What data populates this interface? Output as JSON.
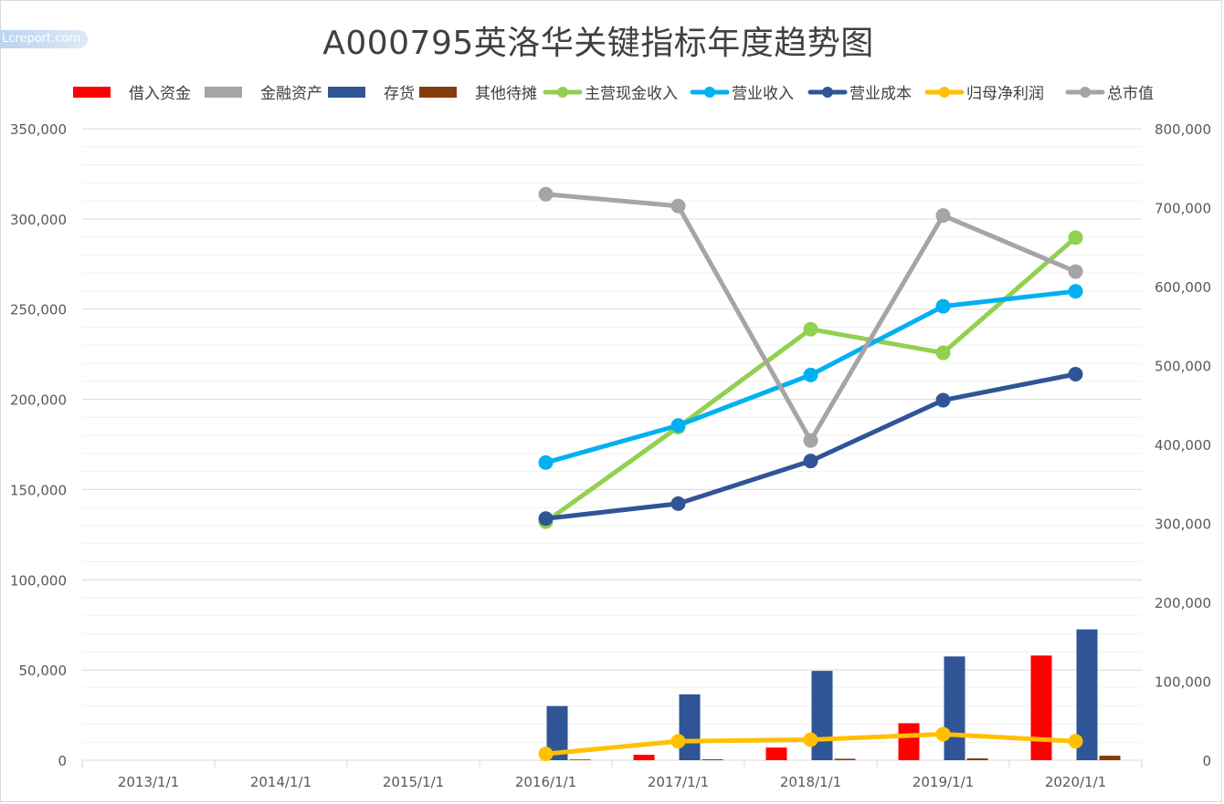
{
  "watermark": "Lcreport.com",
  "chart_data": {
    "type": "bar",
    "title": "A000795英洛华关键指标年度趋势图",
    "categories": [
      "2013/1/1",
      "2014/1/1",
      "2015/1/1",
      "2016/1/1",
      "2017/1/1",
      "2018/1/1",
      "2019/1/1",
      "2020/1/1"
    ],
    "left_axis": {
      "ylim": [
        0,
        350000
      ],
      "ticks": [
        "0",
        "50,000",
        "100,000",
        "150,000",
        "200,000",
        "250,000",
        "300,000",
        "350,000"
      ]
    },
    "right_axis": {
      "ylim": [
        0,
        800000
      ],
      "ticks": [
        "0",
        "100,000",
        "200,000",
        "300,000",
        "400,000",
        "500,000",
        "600,000",
        "700,000",
        "800,000"
      ]
    },
    "grid": true,
    "legend_position": "top",
    "bar_series": [
      {
        "name": "借入资金",
        "color": "#ff0000",
        "values": [
          null,
          null,
          null,
          0,
          3000,
          7000,
          20500,
          58000
        ]
      },
      {
        "name": "金融资产",
        "color": "#a5a5a5",
        "values": [
          null,
          null,
          null,
          0,
          0,
          0,
          0,
          0
        ]
      },
      {
        "name": "存货",
        "color": "#2f5597",
        "values": [
          null,
          null,
          null,
          30000,
          36500,
          49500,
          57500,
          72500
        ]
      },
      {
        "name": "其他待摊",
        "color": "#843c0c",
        "values": [
          null,
          null,
          null,
          400,
          500,
          800,
          1000,
          2500
        ]
      }
    ],
    "line_series": [
      {
        "name": "主营现金收入",
        "color": "#92d050",
        "values": [
          null,
          null,
          null,
          302000,
          422000,
          546000,
          516000,
          662000
        ]
      },
      {
        "name": "营业收入",
        "color": "#00b0f0",
        "values": [
          null,
          null,
          null,
          377000,
          424000,
          488000,
          575000,
          594000
        ]
      },
      {
        "name": "营业成本",
        "color": "#2f5597",
        "values": [
          null,
          null,
          null,
          306000,
          325000,
          379000,
          456000,
          489000
        ]
      },
      {
        "name": "归母净利润",
        "color": "#ffc000",
        "values": [
          null,
          null,
          null,
          8000,
          24000,
          26000,
          33000,
          24000
        ]
      },
      {
        "name": "总市值",
        "color": "#a5a5a5",
        "values": [
          null,
          null,
          null,
          717000,
          702000,
          405000,
          690000,
          619000
        ]
      }
    ]
  }
}
